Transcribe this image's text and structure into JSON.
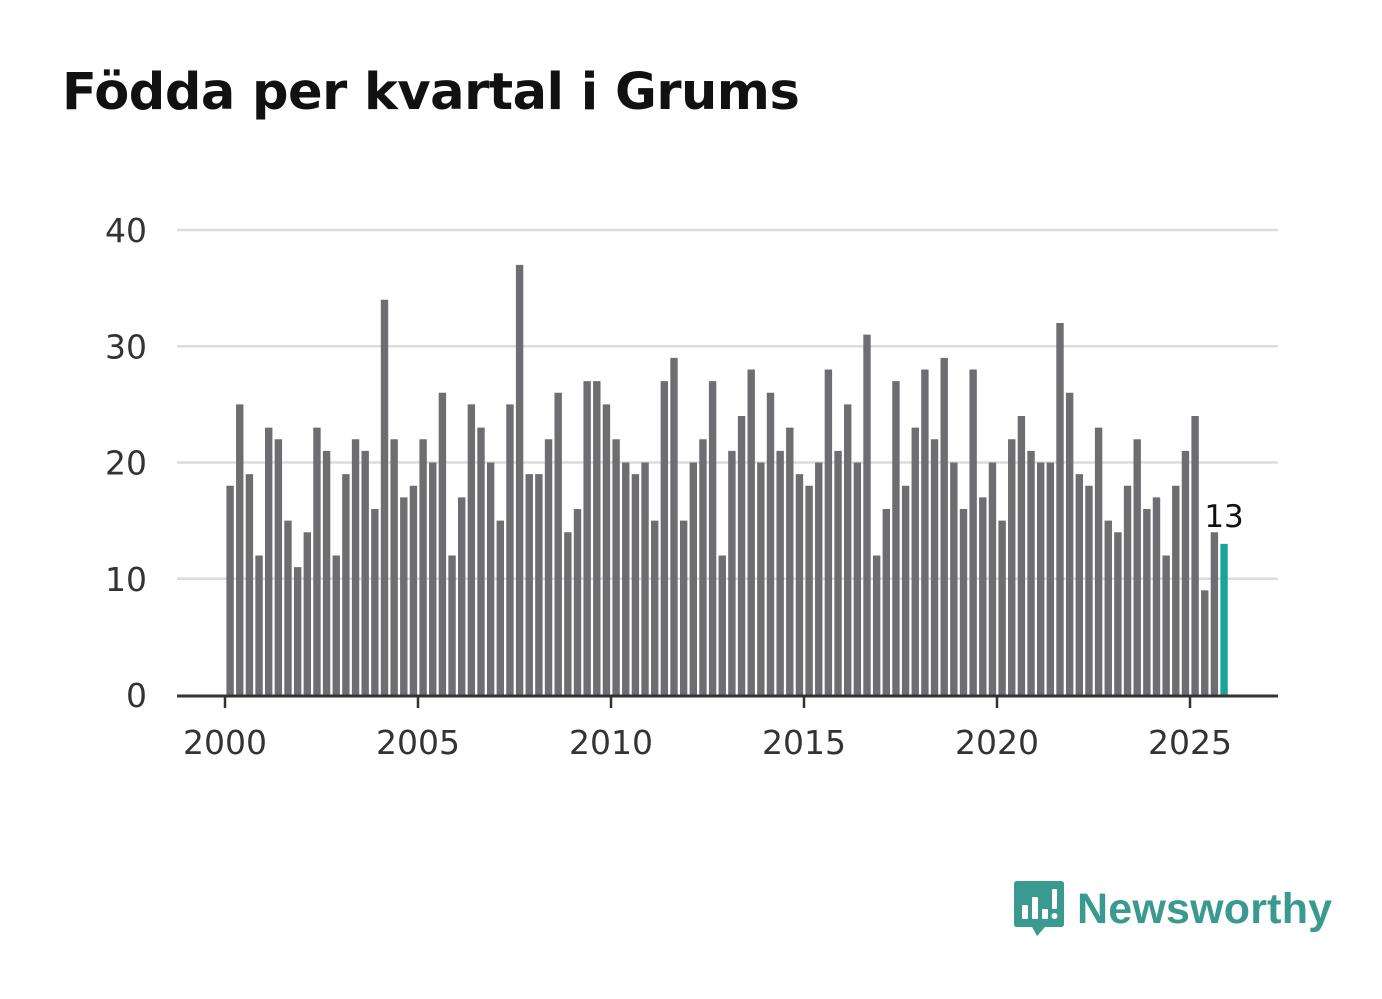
{
  "chart_data": {
    "type": "bar",
    "title": "Födda per kvartal i Grums",
    "xlabel": "",
    "ylabel": "",
    "ylim": [
      0,
      40
    ],
    "yticks": [
      "0",
      "10",
      "20",
      "30",
      "40"
    ],
    "xticks": [
      "2000",
      "2005",
      "2010",
      "2015",
      "2020",
      "2025"
    ],
    "grid": true,
    "start_year": 2000,
    "periods_per_year": 4,
    "values": [
      18,
      25,
      19,
      12,
      23,
      22,
      15,
      11,
      14,
      23,
      21,
      12,
      19,
      22,
      21,
      16,
      34,
      22,
      17,
      18,
      22,
      20,
      26,
      12,
      17,
      25,
      23,
      20,
      15,
      25,
      37,
      19,
      19,
      22,
      26,
      14,
      16,
      27,
      27,
      25,
      22,
      20,
      19,
      20,
      15,
      27,
      29,
      15,
      20,
      22,
      27,
      12,
      21,
      24,
      28,
      20,
      26,
      21,
      23,
      19,
      18,
      20,
      28,
      21,
      25,
      20,
      31,
      12,
      16,
      27,
      18,
      23,
      28,
      22,
      29,
      20,
      16,
      28,
      17,
      20,
      15,
      22,
      24,
      21,
      20,
      20,
      32,
      26,
      19,
      18,
      23,
      15,
      14,
      18,
      22,
      16,
      17,
      12,
      18,
      21,
      24,
      9,
      14,
      13
    ],
    "highlight_index": 103,
    "bar_color": "#6e6e72",
    "highlight_color": "#1aa399",
    "annotation": {
      "index": 103,
      "label": "13"
    }
  },
  "brand": {
    "name": "Newsworthy",
    "icon": "newsworthy-logo-icon",
    "color": "#3a9a8f"
  }
}
